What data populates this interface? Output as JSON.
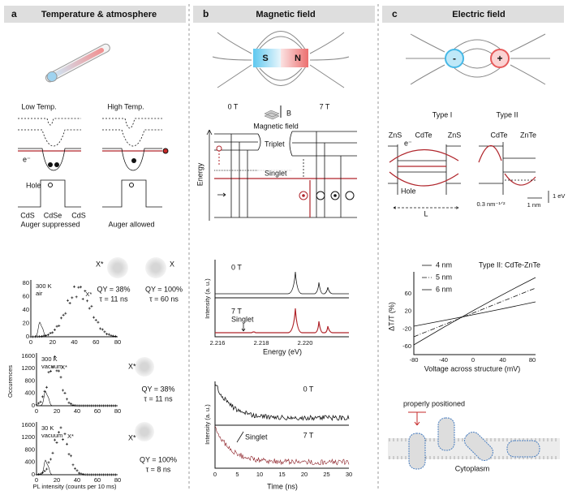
{
  "panel_a": {
    "letter": "a",
    "title": "Temperature & atmosphere",
    "low_temp": "Low Temp.",
    "high_temp": "High Temp.",
    "electron": "e⁻",
    "hole": "Hole",
    "materials": [
      "CdS",
      "CdSe",
      "CdS"
    ],
    "auger_suppressed": "Auger suppressed",
    "auger_allowed": "Auger allowed",
    "states": [
      {
        "state": "X*",
        "qy": "QY = 38%",
        "tau": "τ = 11 ns"
      },
      {
        "state": "X",
        "qy": "QY = 100%",
        "tau": "τ = 60 ns"
      }
    ],
    "plots": [
      {
        "condition": "300 K",
        "atmosphere": "air",
        "peak": "X*",
        "yticks": [
          "0",
          "20",
          "40",
          "60",
          "80"
        ],
        "xticks": [
          "0",
          "20",
          "40",
          "60",
          "80"
        ]
      },
      {
        "condition": "300 K",
        "atmosphere": "vacuum",
        "peak": "X*",
        "state": "X*",
        "qy": "QY =  38%",
        "tau": "τ = 11 ns",
        "yticks": [
          "0",
          "400",
          "800",
          "1200",
          "1600"
        ],
        "xticks": [
          "0",
          "20",
          "40",
          "60",
          "80"
        ]
      },
      {
        "condition": "30 K",
        "atmosphere": "vacuum",
        "peak": "X*",
        "state": "X*",
        "qy": "QY =  100%",
        "tau": "τ = 8 ns",
        "yticks": [
          "0",
          "400",
          "800",
          "1200",
          "1600"
        ],
        "xticks": [
          "0",
          "20",
          "40",
          "60",
          "80"
        ]
      }
    ],
    "y_label": "Occurences",
    "x_label": "PL intensity (counts per 10 ms)"
  },
  "panel_b": {
    "letter": "b",
    "title": "Magnetic field",
    "south": "S",
    "north": "N",
    "field_0": "0 T",
    "field_7": "7 T",
    "b_symbol": "B",
    "magnetic_field": "Magnetic field",
    "triplet": "Triplet",
    "singlet": "Singlet",
    "energy": "Energy",
    "spectrum": {
      "label_0": "0 T",
      "label_7": "7 T",
      "singlet": "Singlet",
      "y_label": "Intensity (a. u.)",
      "x_label": "Energy (eV)",
      "xticks": [
        "2.216",
        "2.218",
        "2.220"
      ]
    },
    "decay": {
      "label_0": "0 T",
      "label_7": "7 T",
      "singlet": "Singlet",
      "y_label": "Intensity (a. u.)",
      "x_label": "Time (ns)",
      "xticks": [
        "0",
        "5",
        "10",
        "15",
        "20",
        "25",
        "30"
      ]
    }
  },
  "panel_c": {
    "letter": "c",
    "title": "Electric field",
    "negative": "-",
    "positive": "+",
    "type_1": "Type I",
    "type_2": "Type II",
    "type_1_materials": [
      "ZnS",
      "CdTe",
      "ZnS"
    ],
    "type_2_materials": [
      "CdTe",
      "ZnTe"
    ],
    "electron": "e⁻",
    "hole": "Hole",
    "length": "L",
    "scale_wave": "0.3 nm⁻¹ᐟ²",
    "scale_length": "1 nm",
    "scale_energy": "1 eV",
    "plot": {
      "legend": [
        "4 nm",
        "5 nm",
        "6 nm"
      ],
      "title": "Type II: CdTe-ZnTe",
      "y_label": "ΔT/T (%)",
      "x_label": "Voltage across structure (mV)",
      "yticks": [
        "60",
        "20",
        "-20",
        "-60"
      ],
      "xticks": [
        "-80",
        "-40",
        "0",
        "40",
        "80"
      ]
    },
    "properly_positioned": "properly positioned",
    "cytoplasm": "Cytoplasm"
  }
}
